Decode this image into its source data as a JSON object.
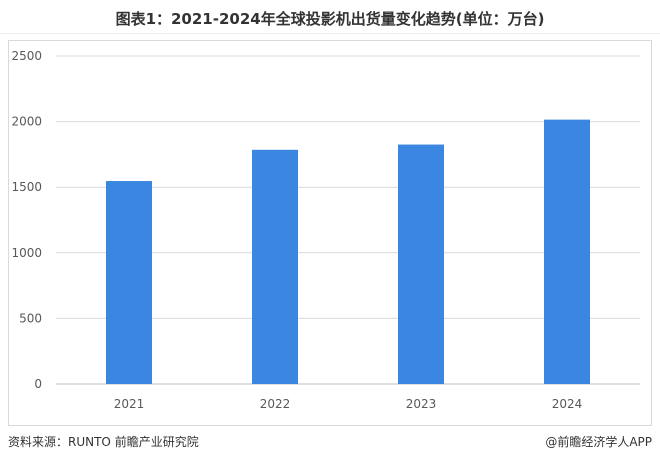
{
  "chart_data": {
    "type": "bar",
    "title": "图表1：2021-2024年全球投影机出货量变化趋势(单位：万台)",
    "categories": [
      "2021",
      "2022",
      "2023",
      "2024"
    ],
    "values": [
      1547,
      1785,
      1825,
      2015
    ],
    "ylim": [
      0,
      2500
    ],
    "yticks": [
      0,
      500,
      1000,
      1500,
      2000,
      2500
    ],
    "grid": true,
    "bar_color": "#3A86E0",
    "xlabel": "",
    "ylabel": ""
  },
  "footer": {
    "source": "资料来源：RUNTO 前瞻产业研究院",
    "credit": "@前瞻经济学人APP"
  }
}
